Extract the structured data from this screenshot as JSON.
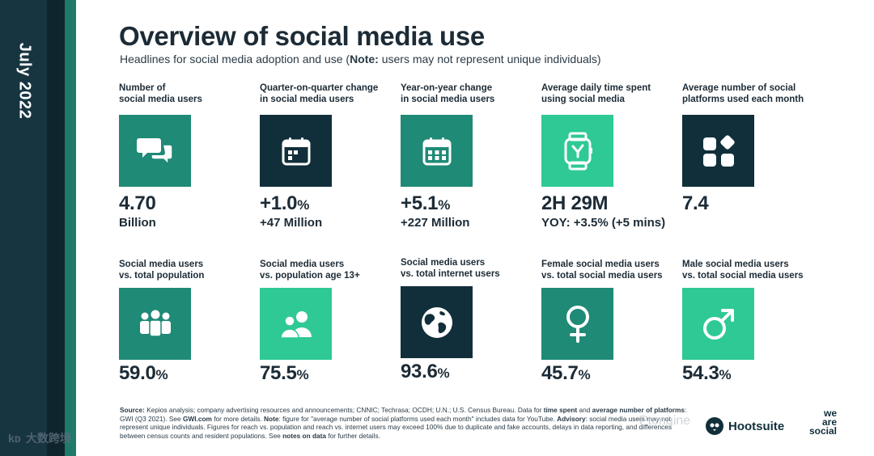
{
  "sidebar": {
    "date": "July 2022"
  },
  "header": {
    "title": "Overview of social media use",
    "subtitle_before": "Headlines for social media adoption and use (",
    "subtitle_note": "Note:",
    "subtitle_after": " users may not represent unique individuals)"
  },
  "row1": [
    {
      "label_line1": "Number of",
      "label_line2": "social media users",
      "icon": "speech-bubbles-icon",
      "color": "#1f8a76",
      "value": "4.70",
      "unit": "",
      "sub": "Billion"
    },
    {
      "label_line1": "Quarter-on-quarter change",
      "label_line2": "in social media users",
      "icon": "calendar-quarter-icon",
      "color": "#112f3a",
      "value": "+1.0",
      "unit": "%",
      "sub": "+47 Million"
    },
    {
      "label_line1": "Year-on-year change",
      "label_line2": "in social media users",
      "icon": "calendar-year-icon",
      "color": "#1f8a76",
      "value": "+5.1",
      "unit": "%",
      "sub": "+227 Million"
    },
    {
      "label_line1": "Average daily time spent",
      "label_line2": "using social media",
      "icon": "smartwatch-icon",
      "color": "#2fc995",
      "value": "2H 29M",
      "unit": "",
      "sub": "YOY: +3.5% (+5 mins)"
    },
    {
      "label_line1": "Average number of social",
      "label_line2": "platforms used each month",
      "icon": "app-grid-icon",
      "color": "#112f3a",
      "value": "7.4",
      "unit": "",
      "sub": ""
    }
  ],
  "row2": [
    {
      "label_line1": "Social media users",
      "label_line2": "vs. total population",
      "icon": "people-group-icon",
      "color": "#1f8a76",
      "value": "59.0",
      "unit": "%"
    },
    {
      "label_line1": "Social media users",
      "label_line2": "vs. population age 13+",
      "icon": "users-icon",
      "color": "#2fc995",
      "value": "75.5",
      "unit": "%"
    },
    {
      "label_line1": "Social media users",
      "label_line2": "vs. total internet users",
      "icon": "globe-icon",
      "color": "#112f3a",
      "value": "93.6",
      "unit": "%"
    },
    {
      "label_line1": "Female social media users",
      "label_line2": "vs. total social media users",
      "icon": "female-symbol-icon",
      "color": "#1f8a76",
      "value": "45.7",
      "unit": "%"
    },
    {
      "label_line1": "Male social media users",
      "label_line2": "vs. total social media users",
      "icon": "male-symbol-icon",
      "color": "#2fc995",
      "value": "54.3",
      "unit": "%"
    }
  ],
  "footer": {
    "source_label": "Source:",
    "source_text": " Kepios analysis; company advertising resources and announcements; CNNIC; Techrasa; OCDH; U.N.; U.S. Census Bureau. Data for ",
    "time_spent": "time spent",
    "and": " and ",
    "avg_platforms": "average number of platforms",
    "gwi": ": GWI (Q3 2021). See ",
    "gwi_link": "GWI.com",
    "more": " for more details. ",
    "note_label": "Note",
    "note_text": ": figure for \"average number of social platforms used each month\" includes data for YouTube.",
    "advisory_label": "Advisory",
    "advisory_text": ": social media users may not represent unique individuals. Figures for reach vs. population and reach vs. internet users may exceed 100% due to duplicate and fake accounts, delays in data reporting, and differences between census counts and resident populations. See ",
    "notes_on_data": "notes on data",
    "advisory_end": " for further details."
  },
  "brands": {
    "hootsuite": "Hootsuite",
    "we": "we",
    "are": "are",
    "social": "social"
  },
  "watermarks": {
    "left": "大数跨境",
    "left_logo": "kᴅ",
    "right": "Ptengine"
  }
}
